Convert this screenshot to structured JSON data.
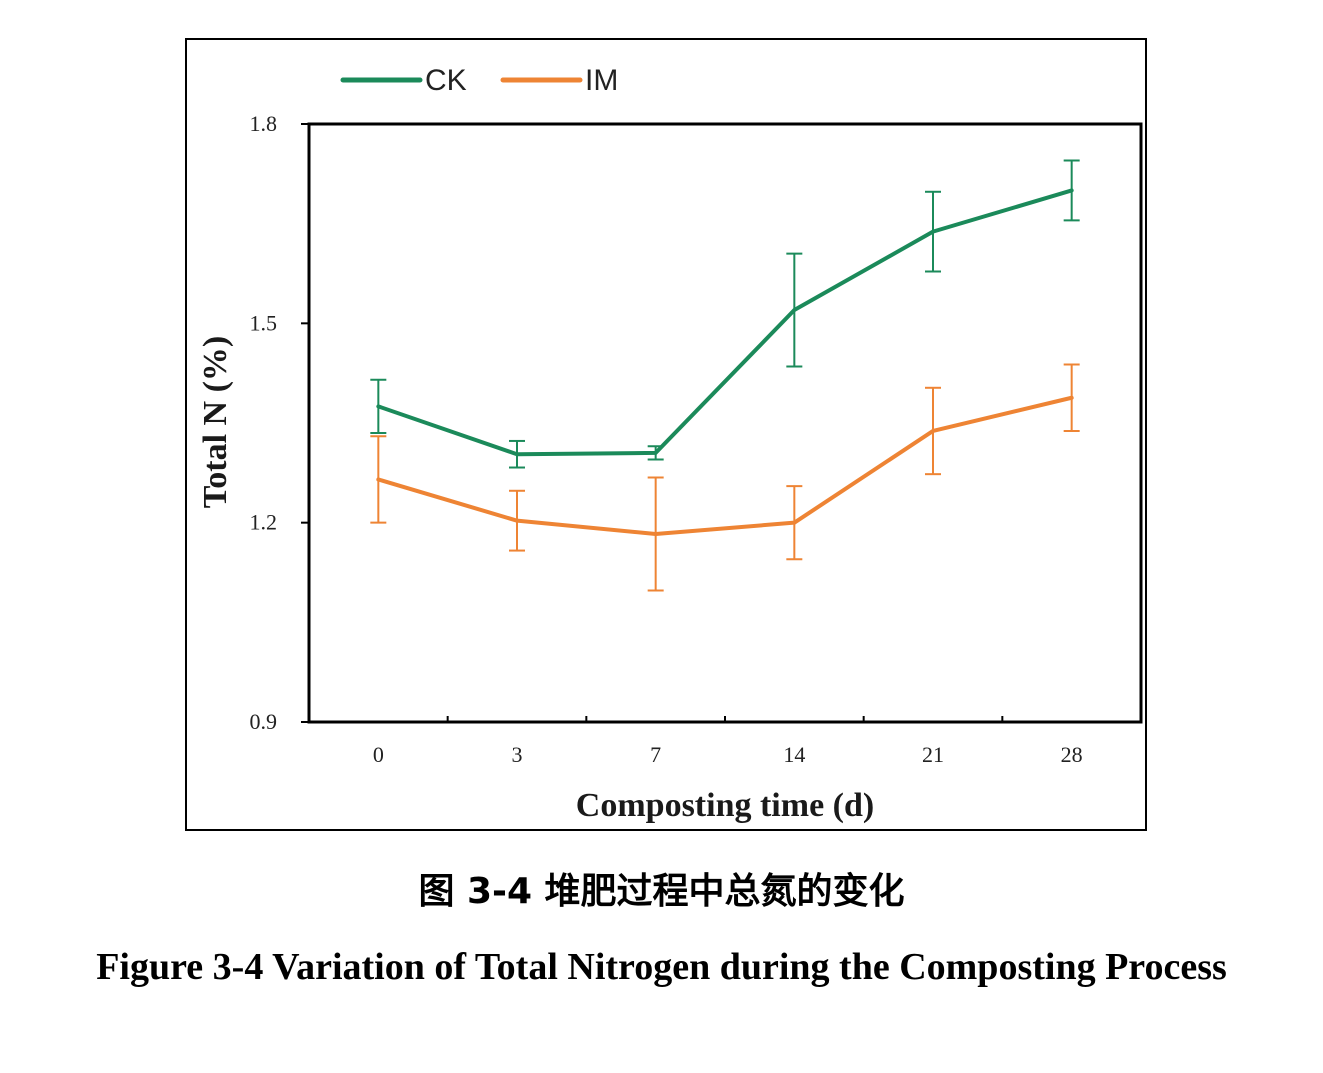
{
  "caption_cn": "图 3-4  堆肥过程中总氮的变化",
  "caption_en": "Figure 3-4 Variation of Total Nitrogen during the Composting Process",
  "chart_data": {
    "type": "line",
    "title": "",
    "xlabel": "Composting time (d)",
    "ylabel": "Total N (%)",
    "categories": [
      "0",
      "3",
      "7",
      "14",
      "21",
      "28"
    ],
    "yticks": [
      "1.8",
      "1.5",
      "1.2",
      "0.9"
    ],
    "ylim": [
      0.9,
      1.8
    ],
    "grid": false,
    "legend_position": "top-left",
    "series": [
      {
        "name": "CK",
        "color": "#1b8a5a",
        "values": [
          1.375,
          1.303,
          1.305,
          1.52,
          1.638,
          1.7
        ],
        "errors": [
          0.04,
          0.02,
          0.01,
          0.085,
          0.06,
          0.045
        ]
      },
      {
        "name": "IM",
        "color": "#ee8434",
        "values": [
          1.265,
          1.203,
          1.183,
          1.2,
          1.338,
          1.388
        ],
        "errors": [
          0.065,
          0.045,
          0.085,
          0.055,
          0.065,
          0.05
        ]
      }
    ]
  }
}
